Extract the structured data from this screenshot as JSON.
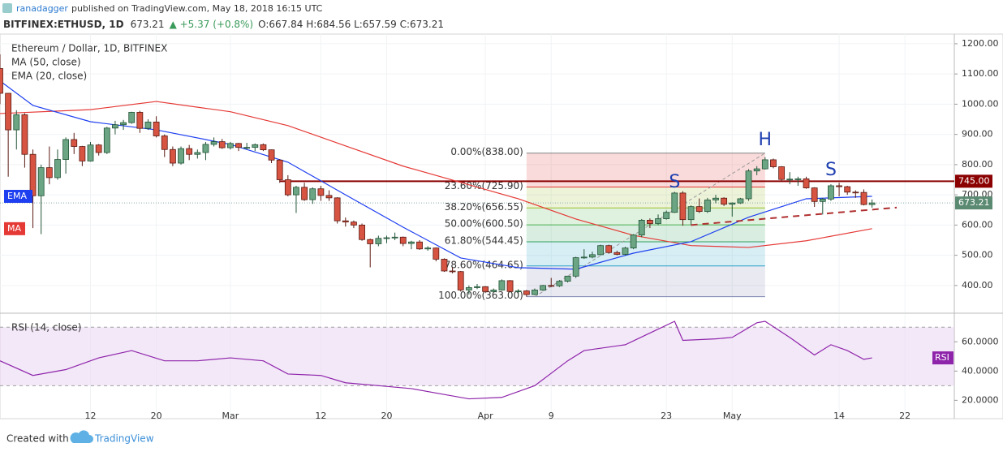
{
  "header": {
    "author": "ranadagger",
    "published": "published on TradingView.com, May 18, 2018 16:15 UTC",
    "symbol": "BITFINEX:ETHUSD, 1D",
    "last": "673.21",
    "change": "▲ +5.37 (+0.8%)",
    "ohlc": "O:667.84 H:684.56 L:657.59 C:673.21"
  },
  "footer": {
    "created": "Created with",
    "brand": "TradingView"
  },
  "chart_data": [
    {
      "type": "candlestick",
      "title": "Ethereum / Dollar, 1D, BITFINEX",
      "up_color": "#6ba583",
      "down_color": "#d75442",
      "xlim": [
        "2018-02-01",
        "2018-05-28"
      ],
      "ylim": [
        311,
        1232
      ],
      "grid": true,
      "yticks": [
        {
          "value": 400,
          "label": "400.00"
        },
        {
          "value": 500,
          "label": "500.00"
        },
        {
          "value": 600,
          "label": "600.00"
        },
        {
          "value": 700,
          "label": "700.00"
        },
        {
          "value": 800,
          "label": "800.00"
        },
        {
          "value": 900,
          "label": "900.00"
        },
        {
          "value": 1000,
          "label": "1000.00"
        },
        {
          "value": 1100,
          "label": "1100.00"
        },
        {
          "value": 1200,
          "label": "1200.00"
        }
      ],
      "xticks": [
        {
          "value": "2018-02-12",
          "label": "12"
        },
        {
          "value": "2018-02-20",
          "label": "20"
        },
        {
          "value": "2018-03-01",
          "label": "Mar"
        },
        {
          "value": "2018-03-12",
          "label": "12"
        },
        {
          "value": "2018-03-20",
          "label": "20"
        },
        {
          "value": "2018-04-01",
          "label": "Apr"
        },
        {
          "value": "2018-04-09",
          "label": "9"
        },
        {
          "value": "2018-04-23",
          "label": "23"
        },
        {
          "value": "2018-05-01",
          "label": "May"
        },
        {
          "value": "2018-05-14",
          "label": "14"
        },
        {
          "value": "2018-05-22",
          "label": "22"
        }
      ],
      "x": [
        "2018-02-01",
        "2018-02-02",
        "2018-02-03",
        "2018-02-04",
        "2018-02-05",
        "2018-02-06",
        "2018-02-07",
        "2018-02-08",
        "2018-02-09",
        "2018-02-10",
        "2018-02-11",
        "2018-02-12",
        "2018-02-13",
        "2018-02-14",
        "2018-02-15",
        "2018-02-16",
        "2018-02-17",
        "2018-02-18",
        "2018-02-19",
        "2018-02-20",
        "2018-02-21",
        "2018-02-22",
        "2018-02-23",
        "2018-02-24",
        "2018-02-25",
        "2018-02-26",
        "2018-02-27",
        "2018-02-28",
        "2018-03-01",
        "2018-03-02",
        "2018-03-03",
        "2018-03-04",
        "2018-03-05",
        "2018-03-06",
        "2018-03-07",
        "2018-03-08",
        "2018-03-09",
        "2018-03-10",
        "2018-03-11",
        "2018-03-12",
        "2018-03-13",
        "2018-03-14",
        "2018-03-15",
        "2018-03-16",
        "2018-03-17",
        "2018-03-18",
        "2018-03-19",
        "2018-03-20",
        "2018-03-21",
        "2018-03-22",
        "2018-03-23",
        "2018-03-24",
        "2018-03-25",
        "2018-03-26",
        "2018-03-27",
        "2018-03-28",
        "2018-03-29",
        "2018-03-30",
        "2018-03-31",
        "2018-04-01",
        "2018-04-02",
        "2018-04-03",
        "2018-04-04",
        "2018-04-05",
        "2018-04-06",
        "2018-04-07",
        "2018-04-08",
        "2018-04-09",
        "2018-04-10",
        "2018-04-11",
        "2018-04-12",
        "2018-04-13",
        "2018-04-14",
        "2018-04-15",
        "2018-04-16",
        "2018-04-17",
        "2018-04-18",
        "2018-04-19",
        "2018-04-20",
        "2018-04-21",
        "2018-04-22",
        "2018-04-23",
        "2018-04-24",
        "2018-04-25",
        "2018-04-26",
        "2018-04-27",
        "2018-04-28",
        "2018-04-29",
        "2018-04-30",
        "2018-05-01",
        "2018-05-02",
        "2018-05-03",
        "2018-05-04",
        "2018-05-05",
        "2018-05-06",
        "2018-05-07",
        "2018-05-08",
        "2018-05-09",
        "2018-05-10",
        "2018-05-11",
        "2018-05-12",
        "2018-05-13",
        "2018-05-14",
        "2018-05-15",
        "2018-05-16",
        "2018-05-17",
        "2018-05-18"
      ],
      "open": [
        1118,
        1036,
        915,
        965,
        834,
        697,
        790,
        757,
        817,
        883,
        860,
        812,
        865,
        840,
        921,
        932,
        939,
        973,
        920,
        941,
        895,
        850,
        805,
        853,
        834,
        840,
        867,
        876,
        856,
        870,
        857,
        857,
        866,
        849,
        815,
        750,
        700,
        725,
        684,
        720,
        698,
        690,
        614,
        610,
        600,
        552,
        538,
        556,
        558,
        560,
        539,
        544,
        521,
        524,
        487,
        448,
        446,
        385,
        393,
        396,
        380,
        385,
        416,
        380,
        382,
        370,
        385,
        400,
        399,
        414,
        431,
        492,
        494,
        502,
        532,
        509,
        503,
        524,
        567,
        616,
        605,
        621,
        642,
        706,
        618,
        661,
        645,
        683,
        689,
        669,
        673,
        687,
        779,
        786,
        816,
        793,
        751,
        752,
        753,
        723,
        678,
        686,
        730,
        727,
        709,
        708,
        667.84
      ],
      "high": [
        1165,
        1037,
        980,
        970,
        850,
        800,
        860,
        850,
        890,
        905,
        862,
        875,
        868,
        925,
        945,
        948,
        975,
        978,
        950,
        960,
        900,
        860,
        860,
        865,
        850,
        875,
        890,
        885,
        875,
        872,
        872,
        870,
        870,
        850,
        818,
        765,
        730,
        740,
        725,
        730,
        715,
        692,
        625,
        615,
        605,
        555,
        565,
        565,
        575,
        562,
        548,
        550,
        530,
        526,
        490,
        460,
        448,
        400,
        405,
        398,
        390,
        420,
        418,
        388,
        385,
        390,
        402,
        425,
        418,
        432,
        495,
        520,
        512,
        535,
        535,
        515,
        528,
        570,
        620,
        622,
        635,
        648,
        710,
        712,
        665,
        688,
        690,
        700,
        692,
        675,
        690,
        785,
        795,
        825,
        820,
        795,
        775,
        760,
        760,
        725,
        690,
        735,
        740,
        730,
        715,
        718,
        684.56
      ],
      "low": [
        1000,
        760,
        850,
        790,
        590,
        570,
        735,
        750,
        770,
        835,
        795,
        810,
        830,
        835,
        900,
        915,
        935,
        905,
        915,
        890,
        825,
        795,
        800,
        815,
        820,
        815,
        860,
        852,
        850,
        845,
        850,
        845,
        845,
        805,
        740,
        695,
        640,
        680,
        670,
        680,
        680,
        605,
        595,
        590,
        548,
        460,
        530,
        540,
        550,
        530,
        520,
        518,
        515,
        480,
        445,
        440,
        380,
        370,
        388,
        375,
        378,
        383,
        378,
        375,
        363,
        368,
        382,
        395,
        395,
        410,
        425,
        488,
        490,
        500,
        505,
        500,
        500,
        520,
        560,
        590,
        600,
        618,
        640,
        598,
        600,
        640,
        640,
        672,
        663,
        628,
        670,
        680,
        765,
        784,
        788,
        745,
        735,
        730,
        720,
        660,
        635,
        680,
        695,
        700,
        690,
        665,
        657.59
      ],
      "close": [
        1036,
        915,
        965,
        834,
        697,
        790,
        757,
        817,
        883,
        860,
        812,
        865,
        840,
        921,
        932,
        939,
        973,
        920,
        941,
        895,
        850,
        805,
        853,
        834,
        840,
        867,
        876,
        856,
        870,
        857,
        857,
        866,
        849,
        815,
        750,
        700,
        725,
        684,
        720,
        698,
        690,
        614,
        610,
        600,
        552,
        538,
        556,
        558,
        560,
        539,
        544,
        521,
        524,
        487,
        448,
        446,
        385,
        393,
        396,
        380,
        385,
        416,
        380,
        382,
        370,
        385,
        400,
        399,
        414,
        431,
        492,
        494,
        502,
        532,
        509,
        503,
        524,
        567,
        616,
        605,
        621,
        642,
        706,
        618,
        661,
        645,
        683,
        689,
        669,
        673,
        687,
        779,
        786,
        816,
        793,
        751,
        752,
        753,
        723,
        678,
        686,
        730,
        727,
        709,
        708,
        667.84,
        673.21
      ],
      "series": [
        {
          "name": "MA (50, close)",
          "tag": "MA",
          "color": "#e53935",
          "x": [
            "2018-02-01",
            "2018-02-12",
            "2018-02-20",
            "2018-03-01",
            "2018-03-08",
            "2018-03-15",
            "2018-03-22",
            "2018-03-29",
            "2018-04-05",
            "2018-04-12",
            "2018-04-19",
            "2018-04-26",
            "2018-05-03",
            "2018-05-10",
            "2018-05-18"
          ],
          "values": [
            969,
            982,
            1009,
            975,
            929,
            862,
            795,
            741,
            687,
            620,
            566,
            532,
            526,
            548,
            588
          ]
        },
        {
          "name": "EMA (20, close)",
          "tag": "EMA",
          "color": "#1e3ff0",
          "x": [
            "2018-02-01",
            "2018-02-05",
            "2018-02-12",
            "2018-02-20",
            "2018-03-01",
            "2018-03-08",
            "2018-03-15",
            "2018-03-22",
            "2018-03-29",
            "2018-04-05",
            "2018-04-12",
            "2018-04-19",
            "2018-04-26",
            "2018-05-03",
            "2018-05-10",
            "2018-05-18"
          ],
          "values": [
            1077,
            996,
            942,
            915,
            867,
            808,
            700,
            593,
            491,
            459,
            454,
            507,
            545,
            626,
            687,
            695
          ]
        }
      ],
      "fib": {
        "x": [
          "2018-04-06",
          "2018-05-05"
        ],
        "levels": [
          {
            "value": 838,
            "label": "0.00%(838.00)",
            "color": "#808080"
          },
          {
            "value": 725.9,
            "label": "23.60%(725.90)",
            "color": "#e53935"
          },
          {
            "value": 656.55,
            "label": "38.20%(656.55)",
            "color": "#9bbf2a"
          },
          {
            "value": 600.5,
            "label": "50.00%(600.50)",
            "color": "#4caf50"
          },
          {
            "value": 544.45,
            "label": "61.80%(544.45)",
            "color": "#2e9e5b"
          },
          {
            "value": 464.65,
            "label": "78.60%(464.65)",
            "color": "#28a0c8"
          },
          {
            "value": 363,
            "label": "100.00%(363.00)",
            "color": "#7e86b0"
          }
        ]
      },
      "hline": {
        "value": 745,
        "label": "745.00",
        "x": "2018-03-07",
        "color": "#8b0000"
      },
      "last": {
        "value": 673.21,
        "label": "673.21",
        "color": "#5b8a72"
      },
      "neckline": {
        "x": [
          "2018-04-26",
          "2018-05-21"
        ],
        "values": [
          600,
          658
        ],
        "color": "#b03030"
      },
      "trend": {
        "x": [
          "2018-04-07",
          "2018-05-05"
        ],
        "values": [
          363,
          838
        ]
      },
      "annotations": [
        {
          "text": "S",
          "x": "2018-04-24",
          "value": 741
        },
        {
          "text": "H",
          "x": "2018-05-05",
          "value": 880
        },
        {
          "text": "S",
          "x": "2018-05-13",
          "value": 781
        }
      ]
    },
    {
      "type": "line",
      "title": "RSI (14, close)",
      "tag": "RSI",
      "color": "#8e24aa",
      "ylim": [
        8,
        79
      ],
      "yticks": [
        {
          "value": 20,
          "label": "20.0000"
        },
        {
          "value": 40,
          "label": "40.0000"
        },
        {
          "value": 60,
          "label": "60.0000"
        }
      ],
      "band": [
        30,
        70
      ],
      "x": [
        "2018-02-01",
        "2018-02-05",
        "2018-02-09",
        "2018-02-13",
        "2018-02-17",
        "2018-02-21",
        "2018-02-25",
        "2018-03-01",
        "2018-03-05",
        "2018-03-08",
        "2018-03-12",
        "2018-03-15",
        "2018-03-19",
        "2018-03-23",
        "2018-03-27",
        "2018-03-30",
        "2018-04-03",
        "2018-04-07",
        "2018-04-11",
        "2018-04-13",
        "2018-04-18",
        "2018-04-21",
        "2018-04-24",
        "2018-04-25",
        "2018-04-29",
        "2018-05-01",
        "2018-05-04",
        "2018-05-05",
        "2018-05-08",
        "2018-05-11",
        "2018-05-13",
        "2018-05-15",
        "2018-05-17",
        "2018-05-18"
      ],
      "values": [
        47,
        37,
        41,
        49,
        54,
        47,
        47,
        49,
        47,
        38,
        37,
        32,
        30,
        28,
        24,
        21,
        22,
        30,
        47,
        54,
        58,
        66,
        74,
        61,
        62,
        63,
        73,
        74,
        63,
        51,
        58,
        54,
        48,
        49
      ]
    }
  ]
}
